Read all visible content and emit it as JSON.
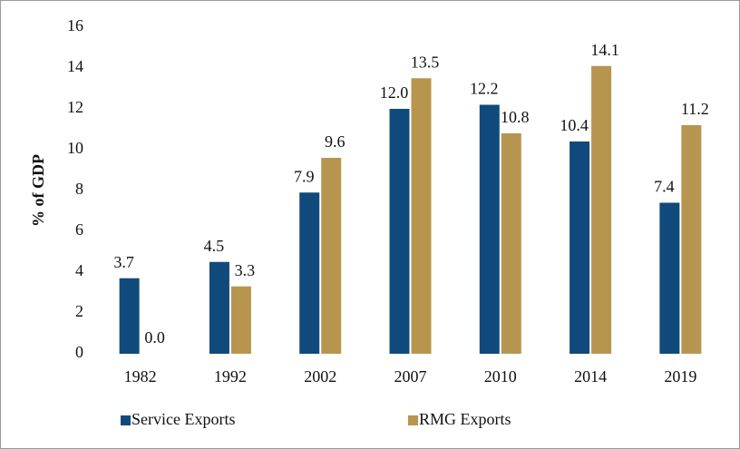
{
  "chart_data": {
    "type": "bar",
    "ylabel": "% of GDP",
    "categories": [
      "1982",
      "1992",
      "2002",
      "2007",
      "2010",
      "2014",
      "2019"
    ],
    "series": [
      {
        "name": "Service Exports",
        "color": "#104a7c",
        "values": [
          3.7,
          4.5,
          7.9,
          12.0,
          12.2,
          10.4,
          7.4
        ],
        "value_labels": [
          "3.7",
          "4.5",
          "7.9",
          "12.0",
          "12.2",
          "10.4",
          "7.4"
        ]
      },
      {
        "name": "RMG Exports",
        "color": "#b8954f",
        "values": [
          0.0,
          3.3,
          9.6,
          13.5,
          10.8,
          14.1,
          11.2
        ],
        "value_labels": [
          "0.0",
          "3.3",
          "9.6",
          "13.5",
          "10.8",
          "14.1",
          "11.2"
        ]
      }
    ],
    "ylim": [
      0,
      16
    ],
    "yticks": [
      0,
      2,
      4,
      6,
      8,
      10,
      12,
      14,
      16
    ],
    "legend": "bottom"
  }
}
